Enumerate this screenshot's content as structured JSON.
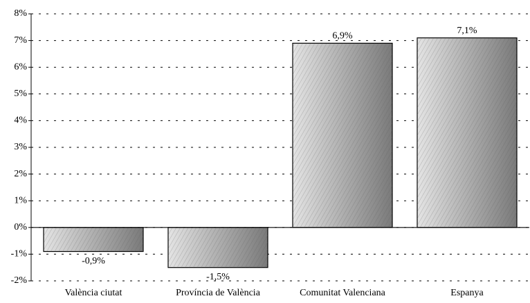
{
  "chart_data": {
    "type": "bar",
    "categories": [
      "València ciutat",
      "Província de València",
      "Comunitat Valenciana",
      "Espanya"
    ],
    "values": [
      -0.9,
      -1.5,
      6.9,
      7.1
    ],
    "value_labels": [
      "-0,9%",
      "-1,5%",
      "6,9%",
      "7,1%"
    ],
    "color": "#b0b0b0",
    "ylim": [
      -2,
      8
    ],
    "yticks": [
      {
        "value": -2,
        "label": "-2%"
      },
      {
        "value": -1,
        "label": "-1%"
      },
      {
        "value": 0,
        "label": "0%"
      },
      {
        "value": 1,
        "label": "1%"
      },
      {
        "value": 2,
        "label": "2%"
      },
      {
        "value": 3,
        "label": "3%"
      },
      {
        "value": 4,
        "label": "4%"
      },
      {
        "value": 5,
        "label": "5%"
      },
      {
        "value": 6,
        "label": "6%"
      },
      {
        "value": 7,
        "label": "7%"
      },
      {
        "value": 8,
        "label": "8%"
      }
    ],
    "grid": true
  }
}
